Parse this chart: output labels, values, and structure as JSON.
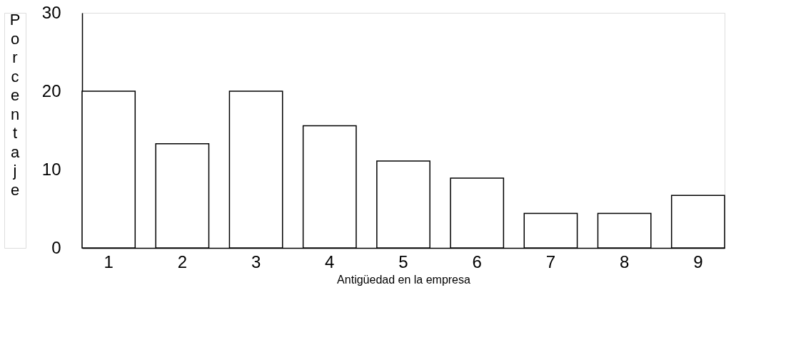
{
  "chart_data": {
    "type": "bar",
    "xlabel": "Antigüedad en la empresa",
    "ylabel": "Porcentaje",
    "categories": [
      "1",
      "2",
      "3",
      "4",
      "5",
      "6",
      "7",
      "8",
      "9"
    ],
    "values": [
      20,
      13.3,
      20,
      15.6,
      11.1,
      8.9,
      4.4,
      4.4,
      6.7
    ],
    "color": "#ffffff",
    "ylim": [
      0,
      30
    ],
    "yticks": [
      0,
      10,
      20,
      30
    ],
    "grid": false
  }
}
